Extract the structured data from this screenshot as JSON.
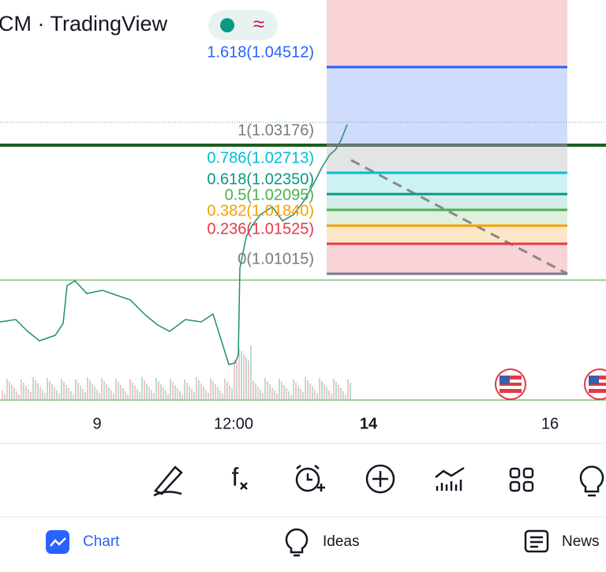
{
  "header": {
    "title": "CM · TradingView"
  },
  "fib_levels": [
    {
      "label": "1.618(1.04512)",
      "color": "#2962ff"
    },
    {
      "label": "1(1.03176)",
      "color": "#787b86"
    },
    {
      "label": "0.786(1.02713)",
      "color": "#00bcd4"
    },
    {
      "label": "0.618(1.02350)",
      "color": "#089981"
    },
    {
      "label": "0.5(1.02095)",
      "color": "#4caf50"
    },
    {
      "label": "0.382(1.01840)",
      "color": "#f59f00"
    },
    {
      "label": "0.236(1.01525)",
      "color": "#e53945"
    },
    {
      "label": "0(1.01015)",
      "color": "#787b86"
    }
  ],
  "x_axis": {
    "labels": [
      "9",
      "12:00",
      "14",
      "16"
    ]
  },
  "nav": {
    "items": [
      "Chart",
      "Ideas",
      "News"
    ]
  }
}
